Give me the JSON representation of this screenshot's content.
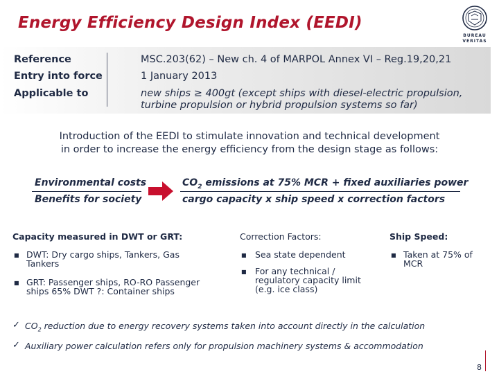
{
  "title": "Energy Efficiency Design Index (EEDI)",
  "logo": {
    "line1": "BUREAU",
    "line2": "VERITAS",
    "seal_text": "1828"
  },
  "reference": {
    "rows": [
      {
        "label": "Reference",
        "value": "MSC.203(62) – New ch. 4 of MARPOL Annex VI – Reg.19,20,21"
      },
      {
        "label": "Entry into force",
        "value": "1 January 2013"
      },
      {
        "label": "Applicable to",
        "value_line1": "new ships ≥ 400gt (except ships with diesel-electric propulsion,",
        "value_line2": "turbine propulsion or hybrid propulsion systems so far)"
      }
    ]
  },
  "intro": {
    "line1": "Introduction of the EEDI to stimulate innovation and technical development",
    "line2": "in order to increase the energy efficiency from the design stage as follows:"
  },
  "formula": {
    "left_top": "Environmental costs",
    "left_bottom": "Benefits for society",
    "right_top_prefix": "CO",
    "right_top_sub": "2",
    "right_top_suffix": " emissions at 75% MCR + fixed auxiliaries power",
    "right_bottom": "cargo capacity x ship speed x correction factors"
  },
  "capacity": {
    "heading": "Capacity measured in DWT or GRT:",
    "items": [
      {
        "line1": "DWT: Dry cargo ships, Tankers, Gas",
        "line2": "Tankers"
      },
      {
        "line1": "GRT: Passenger ships, RO-RO Passenger",
        "line2": "ships 65% DWT ?: Container ships"
      }
    ]
  },
  "correction": {
    "heading": "Correction Factors:",
    "items": [
      {
        "line1": "Sea state dependent"
      },
      {
        "line1": "For any technical /",
        "line2": "regulatory capacity limit",
        "line3": "(e.g. ice class)"
      }
    ]
  },
  "speed": {
    "heading": "Ship Speed:",
    "items": [
      {
        "line1": "Taken at 75% of",
        "line2": "MCR"
      }
    ]
  },
  "checks": [
    {
      "prefix": "CO",
      "sub": "2",
      "text": " reduction due to energy recovery systems taken into account directly in the calculation"
    },
    {
      "prefix": "",
      "sub": "",
      "text": "Auxiliary power calculation refers only for propulsion machinery systems & accommodation"
    }
  ],
  "page_number": "8",
  "colors": {
    "title": "#b0152c",
    "text": "#1f2a44",
    "arrow": "#c8102e",
    "accent_line": "#b0152c"
  },
  "icons": {
    "bullet": "square-bullet-icon",
    "check": "checkmark-icon",
    "arrow": "right-arrow-icon"
  }
}
